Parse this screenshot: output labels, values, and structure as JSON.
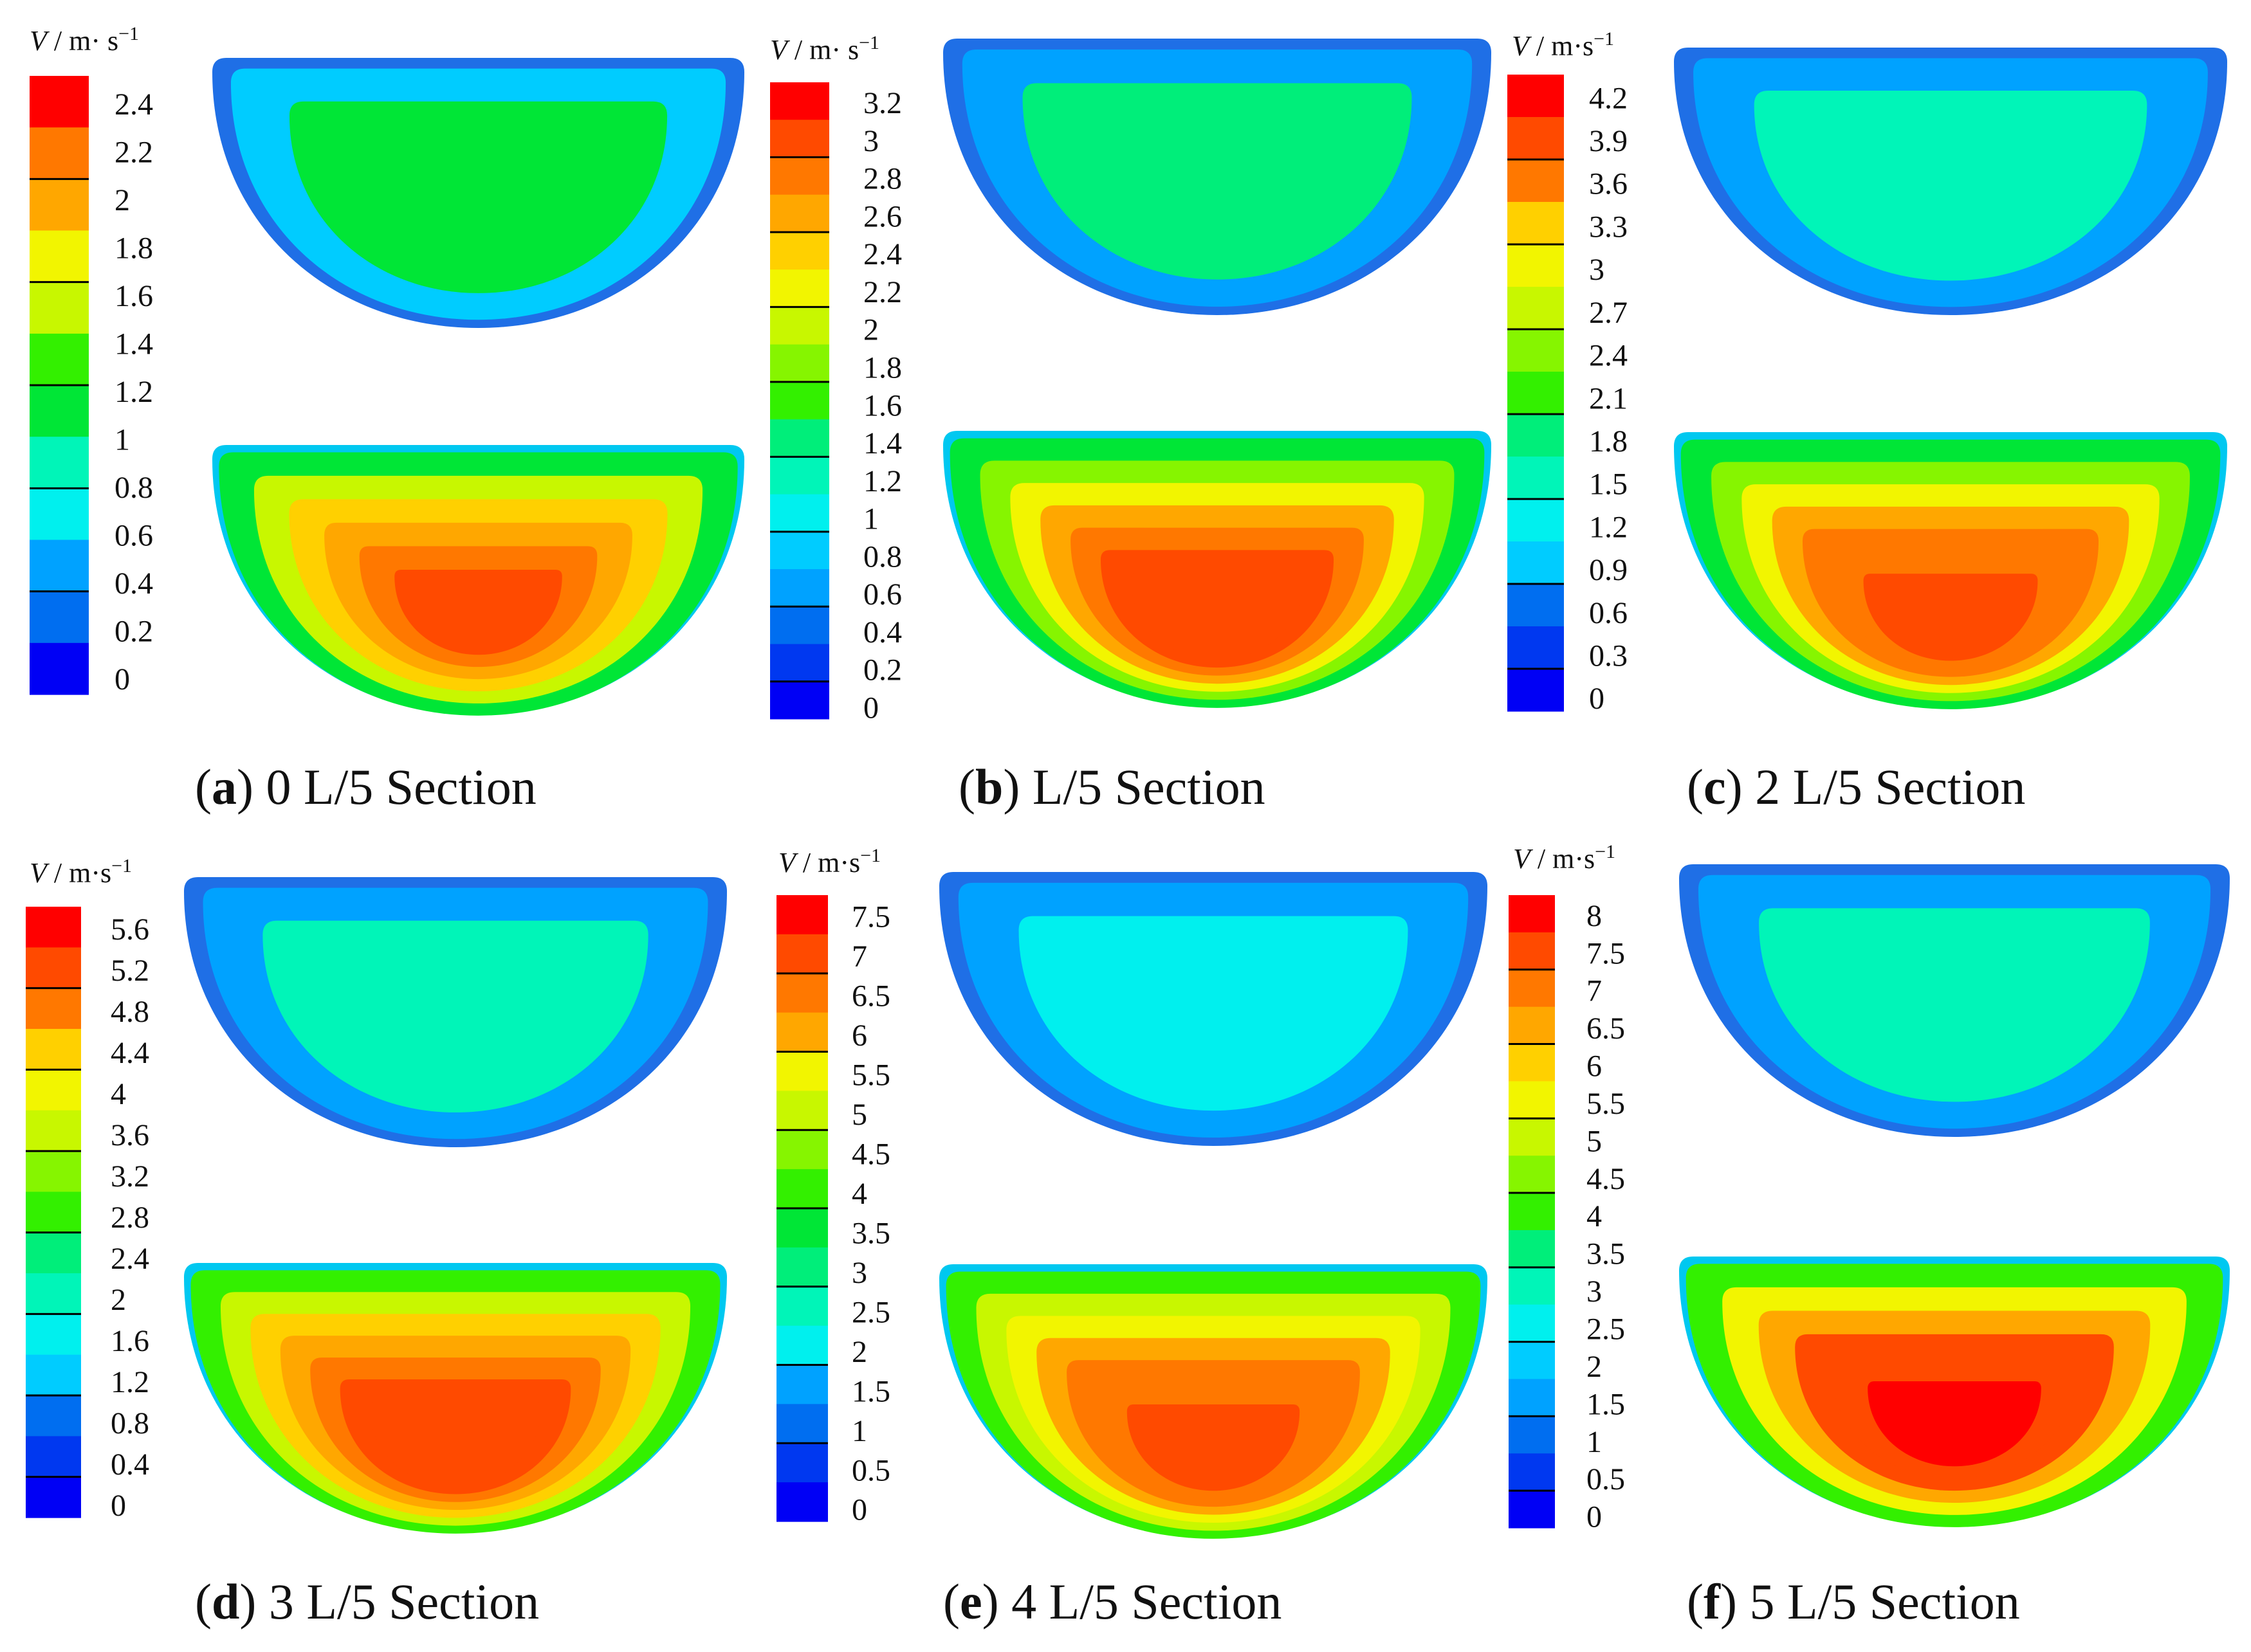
{
  "figure": {
    "palette": [
      "#0000f5",
      "#0038f0",
      "#006ef0",
      "#00a2ff",
      "#00ccff",
      "#00f0ee",
      "#00f5b8",
      "#00ee7a",
      "#00e636",
      "#33f000",
      "#86f500",
      "#c8f700",
      "#f2f500",
      "#ffd000",
      "#ffa700",
      "#ff7800",
      "#ff4a00",
      "#ff0000"
    ],
    "panels": [
      {
        "letter": "a",
        "caption": " 0 L/5 Section",
        "unit_symbol": "V",
        "unit_text": " / m· s",
        "unit_exp": "−1",
        "ticks": [
          "2.4",
          "2.2",
          "2",
          "1.8",
          "1.6",
          "1.4",
          "1.2",
          "1",
          "0.8",
          "0.6",
          "0.4",
          "0.2",
          "0"
        ],
        "legend_bands": 12,
        "major_every": 2,
        "upper_levels": [
          0.22,
          0.45
        ],
        "lower_levels": [
          0.46,
          0.62,
          0.74,
          0.82,
          0.88,
          0.93
        ]
      },
      {
        "letter": "b",
        "caption": " L/5 Section",
        "unit_symbol": "V",
        "unit_text": " / m· s",
        "unit_exp": "−1",
        "ticks": [
          "3.2",
          "3",
          "2.8",
          "2.6",
          "2.4",
          "2.2",
          "2",
          "1.8",
          "1.6",
          "1.4",
          "1.2",
          "1",
          "0.8",
          "0.6",
          "0.4",
          "0.2",
          "0"
        ],
        "legend_bands": 17,
        "major_every": 2,
        "upper_levels": [
          0.2,
          0.42
        ],
        "lower_levels": [
          0.46,
          0.61,
          0.73,
          0.81,
          0.87,
          0.92,
          0.96
        ]
      },
      {
        "letter": "c",
        "caption": " 2 L/5 Section",
        "unit_symbol": "V",
        "unit_text": " / m·s",
        "unit_exp": "−1",
        "ticks": [
          "4.2",
          "3.9",
          "3.6",
          "3.3",
          "3",
          "2.7",
          "2.4",
          "2.1",
          "1.8",
          "1.5",
          "1.2",
          "0.9",
          "0.6",
          "0.3",
          "0"
        ],
        "legend_bands": 15,
        "major_every": 2,
        "upper_levels": [
          0.18,
          0.34
        ],
        "lower_levels": [
          0.46,
          0.6,
          0.72,
          0.8,
          0.86,
          0.91,
          0.95
        ]
      },
      {
        "letter": "d",
        "caption": " 3 L/5 Section",
        "unit_symbol": "V",
        "unit_text": " / m·s",
        "unit_exp": "−1",
        "ticks": [
          "5.6",
          "5.2",
          "4.8",
          "4.4",
          "4",
          "3.6",
          "3.2",
          "2.8",
          "2.4",
          "2",
          "1.6",
          "1.2",
          "0.8",
          "0.4",
          "0"
        ],
        "legend_bands": 15,
        "major_every": 2,
        "upper_levels": [
          0.2,
          0.34
        ],
        "lower_levels": [
          0.5,
          0.64,
          0.74,
          0.82,
          0.88,
          0.93,
          0.97
        ]
      },
      {
        "letter": "e",
        "caption": " 4 L/5 Section",
        "unit_symbol": "V",
        "unit_text": " / m·s",
        "unit_exp": "−1",
        "ticks": [
          "7.5",
          "7",
          "6.5",
          "6",
          "5.5",
          "5",
          "4.5",
          "4",
          "3.5",
          "3",
          "2.5",
          "2",
          "1.5",
          "1",
          "0.5",
          "0"
        ],
        "legend_bands": 16,
        "major_every": 2,
        "upper_levels": [
          0.16,
          0.3
        ],
        "lower_levels": [
          0.5,
          0.63,
          0.72,
          0.8,
          0.86,
          0.91,
          0.95
        ]
      },
      {
        "letter": "f",
        "caption": " 5 L/5 Section",
        "unit_symbol": "V",
        "unit_text": " / m·s",
        "unit_exp": "−1",
        "ticks": [
          "8",
          "7.5",
          "7",
          "6.5",
          "6",
          "5.5",
          "5",
          "4.5",
          "4",
          "3.5",
          "3",
          "2.5",
          "2",
          "1.5",
          "1",
          "0.5",
          "0"
        ],
        "legend_bands": 17,
        "major_every": 2,
        "upper_levels": [
          0.18,
          0.38
        ],
        "lower_levels": [
          0.55,
          0.72,
          0.84,
          0.92,
          0.97,
          1.0
        ]
      }
    ]
  }
}
